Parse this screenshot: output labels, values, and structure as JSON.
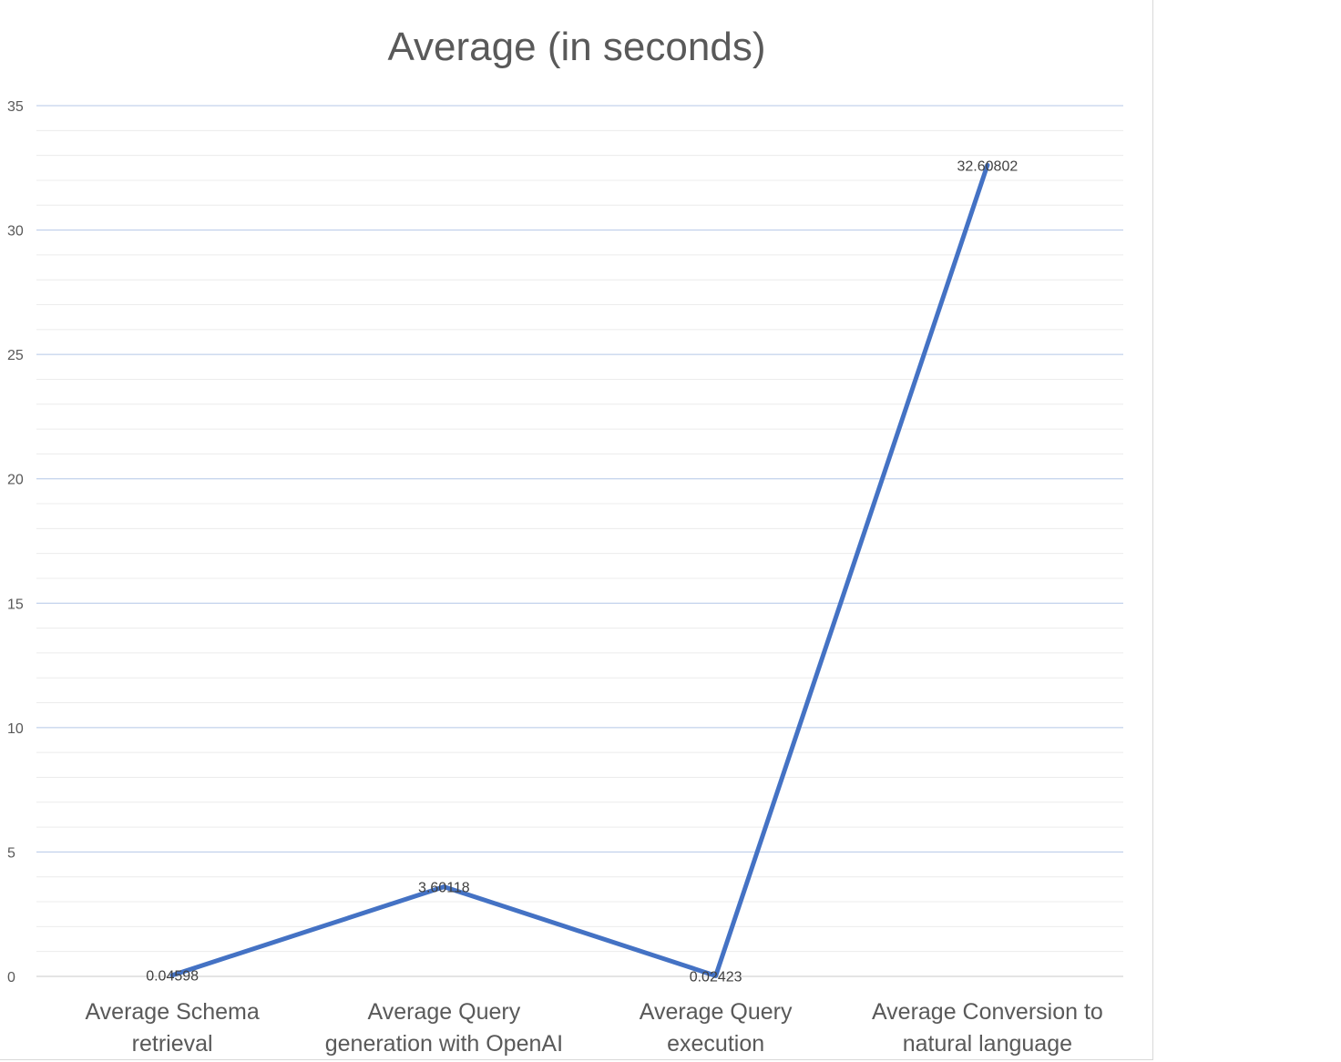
{
  "chart_data": {
    "type": "line",
    "title": "Average (in seconds)",
    "xlabel": "",
    "ylabel": "",
    "categories": [
      [
        "Average Schema",
        "retrieval"
      ],
      [
        "Average Query",
        "generation with OpenAI"
      ],
      [
        "Average Query",
        "execution"
      ],
      [
        "Average Conversion to",
        "natural language"
      ]
    ],
    "series": [
      {
        "values": [
          0.04598,
          3.60118,
          0.02423,
          32.60802
        ],
        "color": "#4472c4"
      }
    ],
    "data_labels": [
      "0.04598",
      "3.60118",
      "0.02423",
      "32.60802"
    ],
    "ylim": [
      0,
      35
    ],
    "y_ticks": [
      0,
      5,
      10,
      15,
      20,
      25,
      30,
      35
    ],
    "y_minor_step": 1,
    "grid": true,
    "legend": "none"
  }
}
